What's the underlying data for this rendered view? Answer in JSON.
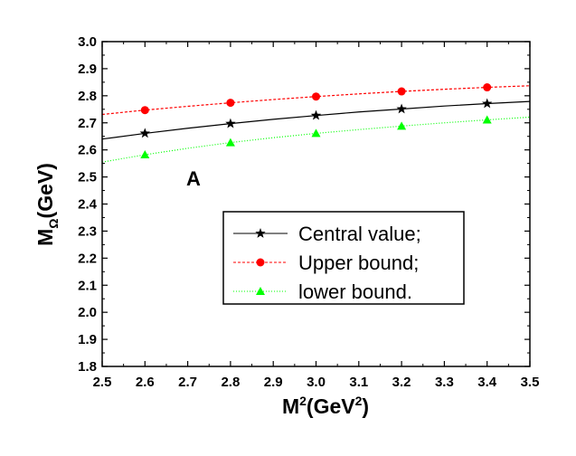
{
  "chart_data": {
    "type": "line",
    "xlabel": {
      "base": "M",
      "sup": "2",
      "mid": "(GeV",
      "sup2": "2",
      "end": ")"
    },
    "ylabel": {
      "base": "M",
      "sub": "Ω",
      "end": "(GeV)"
    },
    "xlim": [
      2.5,
      3.5
    ],
    "ylim": [
      1.8,
      3.0
    ],
    "xticks": [
      "2.5",
      "2.6",
      "2.7",
      "2.8",
      "2.9",
      "3.0",
      "3.1",
      "3.2",
      "3.3",
      "3.4",
      "3.5"
    ],
    "yticks": [
      "1.8",
      "1.9",
      "2.0",
      "2.1",
      "2.2",
      "2.3",
      "2.4",
      "2.5",
      "2.6",
      "2.7",
      "2.8",
      "2.9",
      "3.0"
    ],
    "annotation": "A",
    "legend_position": "right",
    "grid": false,
    "x": [
      2.5,
      2.6,
      2.7,
      2.8,
      2.9,
      3.0,
      3.1,
      3.2,
      3.3,
      3.4,
      3.5
    ],
    "marker_x": [
      2.6,
      2.8,
      3.0,
      3.2,
      3.4
    ],
    "series": [
      {
        "name": "Central value;",
        "color": "#000000",
        "dash": "solid",
        "marker": "star",
        "values": [
          2.64,
          2.661,
          2.68,
          2.697,
          2.713,
          2.727,
          2.74,
          2.751,
          2.762,
          2.771,
          2.779
        ]
      },
      {
        "name": "Upper bound;",
        "color": "#ff0000",
        "dash": "dashed",
        "marker": "circle",
        "values": [
          2.731,
          2.747,
          2.761,
          2.774,
          2.786,
          2.797,
          2.807,
          2.816,
          2.824,
          2.831,
          2.837
        ]
      },
      {
        "name": "lower bound.",
        "color": "#00ff00",
        "dash": "dotted",
        "marker": "triangle",
        "values": [
          2.555,
          2.582,
          2.606,
          2.627,
          2.645,
          2.661,
          2.675,
          2.688,
          2.7,
          2.711,
          2.721
        ]
      }
    ]
  }
}
